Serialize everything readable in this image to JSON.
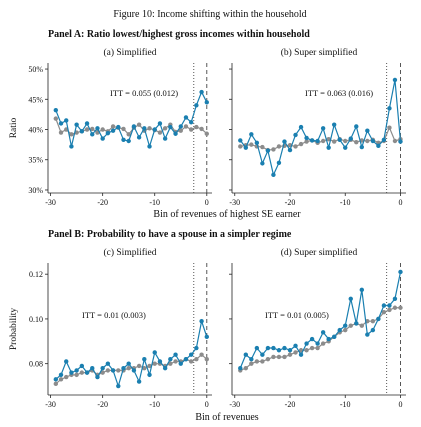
{
  "figure_title": "Figure 10: Income shifting within the household",
  "panel_a_title": "Panel A: Ratio lowest/highest gross incomes within household",
  "panel_b_title": "Panel B: Probability to have a spouse in a simpler regime",
  "colors": {
    "treated": "#1a7fb0",
    "control": "#8c8c8c"
  },
  "chart_data": [
    {
      "type": "line",
      "subtitle": "(a) Simplified",
      "ylabel": "Ratio",
      "xlabel": "",
      "ylim": [
        0.295,
        0.51
      ],
      "xlim": [
        -30.5,
        1
      ],
      "yticks": [
        0.3,
        0.35,
        0.4,
        0.45,
        0.5
      ],
      "ytick_labels": [
        "30%",
        "35%",
        "40%",
        "45%",
        "50%"
      ],
      "xticks": [
        -30,
        -20,
        -10,
        0
      ],
      "xtick_labels": [
        "-30",
        "-20",
        "-10",
        "0"
      ],
      "vlines": {
        "dotted": -2.5,
        "dashed": 0
      },
      "annotation": "ITT = 0.055 (0.012)",
      "x": [
        -29,
        -28,
        -27,
        -26,
        -25,
        -24,
        -23,
        -22,
        -21,
        -20,
        -19,
        -18,
        -17,
        -16,
        -15,
        -14,
        -13,
        -12,
        -11,
        -10,
        -9,
        -8,
        -7,
        -6,
        -5,
        -4,
        -3,
        -2,
        -1,
        0
      ],
      "series": [
        {
          "color_key": "treated",
          "values": [
            0.432,
            0.41,
            0.415,
            0.372,
            0.408,
            0.397,
            0.41,
            0.392,
            0.402,
            0.385,
            0.394,
            0.398,
            0.404,
            0.383,
            0.381,
            0.405,
            0.387,
            0.402,
            0.372,
            0.4,
            0.41,
            0.385,
            0.404,
            0.393,
            0.405,
            0.42,
            0.412,
            0.44,
            0.462,
            0.445
          ]
        },
        {
          "color_key": "control",
          "values": [
            0.418,
            0.395,
            0.4,
            0.392,
            0.395,
            0.397,
            0.4,
            0.401,
            0.395,
            0.4,
            0.397,
            0.405,
            0.403,
            0.401,
            0.392,
            0.403,
            0.408,
            0.398,
            0.402,
            0.399,
            0.395,
            0.402,
            0.408,
            0.396,
            0.398,
            0.405,
            0.4,
            0.404,
            0.401,
            0.393
          ]
        }
      ]
    },
    {
      "type": "line",
      "subtitle": "(b) Super simplified",
      "ylabel": "",
      "xlabel": "Bin of revenues of highest SE earner",
      "ylim": [
        0.295,
        0.51
      ],
      "xlim": [
        -30.5,
        1
      ],
      "yticks": [
        0.3,
        0.35,
        0.4,
        0.45,
        0.5
      ],
      "ytick_labels": [],
      "xticks": [
        -30,
        -20,
        -10,
        0
      ],
      "xtick_labels": [
        "-30",
        "-20",
        "-10",
        "0"
      ],
      "vlines": {
        "dotted": -2.5,
        "dashed": 0
      },
      "annotation": "ITT = 0.063 (0.016)",
      "x": [
        -29,
        -28,
        -27,
        -26,
        -25,
        -24,
        -23,
        -22,
        -21,
        -20,
        -19,
        -18,
        -17,
        -16,
        -15,
        -14,
        -13,
        -12,
        -11,
        -10,
        -9,
        -8,
        -7,
        -6,
        -5,
        -4,
        -3,
        -2,
        -1,
        0
      ],
      "series": [
        {
          "color_key": "treated",
          "values": [
            0.382,
            0.37,
            0.392,
            0.378,
            0.344,
            0.365,
            0.325,
            0.345,
            0.38,
            0.366,
            0.391,
            0.404,
            0.386,
            0.382,
            0.381,
            0.402,
            0.37,
            0.408,
            0.383,
            0.37,
            0.385,
            0.405,
            0.371,
            0.398,
            0.381,
            0.373,
            0.383,
            0.435,
            0.482,
            0.38
          ]
        },
        {
          "color_key": "control",
          "values": [
            0.372,
            0.374,
            0.375,
            0.372,
            0.371,
            0.366,
            0.367,
            0.372,
            0.373,
            0.374,
            0.372,
            0.376,
            0.38,
            0.382,
            0.378,
            0.381,
            0.384,
            0.38,
            0.384,
            0.381,
            0.383,
            0.379,
            0.382,
            0.381,
            0.383,
            0.378,
            0.381,
            0.403,
            0.381,
            0.384
          ]
        }
      ]
    },
    {
      "type": "line",
      "subtitle": "(c) Simplified",
      "ylabel": "Probability",
      "xlabel": "",
      "ylim": [
        0.066,
        0.125
      ],
      "xlim": [
        -30.5,
        1
      ],
      "yticks": [
        0.08,
        0.1,
        0.12
      ],
      "ytick_labels": [
        "0.08",
        "0.10",
        "0.12"
      ],
      "xticks": [
        -30,
        -20,
        -10,
        0
      ],
      "xtick_labels": [
        "-30",
        "-20",
        "-10",
        "0"
      ],
      "vlines": {
        "dotted": -2.5,
        "dashed": 0
      },
      "annotation": "ITT = 0.01 (0.003)",
      "x": [
        -29,
        -28,
        -27,
        -26,
        -25,
        -24,
        -23,
        -22,
        -21,
        -20,
        -19,
        -18,
        -17,
        -16,
        -15,
        -14,
        -13,
        -12,
        -11,
        -10,
        -9,
        -8,
        -7,
        -6,
        -5,
        -4,
        -3,
        -2,
        -1,
        0
      ],
      "series": [
        {
          "color_key": "treated",
          "values": [
            0.073,
            0.075,
            0.081,
            0.076,
            0.077,
            0.079,
            0.076,
            0.078,
            0.074,
            0.078,
            0.08,
            0.077,
            0.07,
            0.078,
            0.08,
            0.077,
            0.072,
            0.082,
            0.075,
            0.085,
            0.081,
            0.078,
            0.082,
            0.084,
            0.08,
            0.082,
            0.084,
            0.087,
            0.099,
            0.092
          ]
        },
        {
          "color_key": "control",
          "values": [
            0.071,
            0.073,
            0.074,
            0.075,
            0.075,
            0.076,
            0.076,
            0.077,
            0.075,
            0.076,
            0.077,
            0.077,
            0.077,
            0.077,
            0.078,
            0.078,
            0.079,
            0.078,
            0.079,
            0.08,
            0.08,
            0.079,
            0.08,
            0.081,
            0.081,
            0.082,
            0.081,
            0.082,
            0.084,
            0.082
          ]
        }
      ]
    },
    {
      "type": "line",
      "subtitle": "(d) Super simplified",
      "ylabel": "",
      "xlabel": "Bin of revenues",
      "ylim": [
        0.066,
        0.125
      ],
      "xlim": [
        -30.5,
        1
      ],
      "yticks": [
        0.08,
        0.1,
        0.12
      ],
      "ytick_labels": [],
      "xticks": [
        -30,
        -20,
        -10,
        0
      ],
      "xtick_labels": [
        "-30",
        "-20",
        "-10",
        "0"
      ],
      "vlines": {
        "dotted": -2.5,
        "dashed": 0
      },
      "annotation": "ITT = 0.01 (0.005)",
      "x": [
        -29,
        -28,
        -27,
        -26,
        -25,
        -24,
        -23,
        -22,
        -21,
        -20,
        -19,
        -18,
        -17,
        -16,
        -15,
        -14,
        -13,
        -12,
        -11,
        -10,
        -9,
        -8,
        -7,
        -6,
        -5,
        -4,
        -3,
        -2,
        -1,
        0
      ],
      "series": [
        {
          "color_key": "treated",
          "values": [
            0.078,
            0.084,
            0.082,
            0.087,
            0.084,
            0.087,
            0.087,
            0.086,
            0.087,
            0.086,
            0.088,
            0.084,
            0.089,
            0.091,
            0.089,
            0.094,
            0.091,
            0.092,
            0.095,
            0.097,
            0.109,
            0.098,
            0.113,
            0.093,
            0.095,
            0.1,
            0.106,
            0.106,
            0.109,
            0.121
          ]
        },
        {
          "color_key": "control",
          "values": [
            0.077,
            0.078,
            0.08,
            0.081,
            0.081,
            0.082,
            0.083,
            0.083,
            0.083,
            0.084,
            0.085,
            0.086,
            0.086,
            0.087,
            0.087,
            0.089,
            0.09,
            0.092,
            0.094,
            0.095,
            0.097,
            0.098,
            0.097,
            0.099,
            0.099,
            0.1,
            0.103,
            0.104,
            0.105,
            0.105
          ]
        }
      ]
    }
  ]
}
